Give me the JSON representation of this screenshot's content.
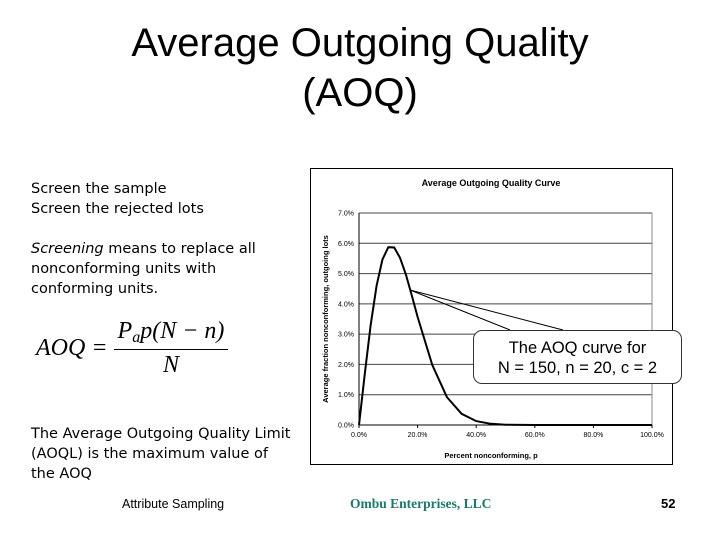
{
  "slide": {
    "title_line1": "Average Outgoing Quality",
    "title_line2": "(AOQ)",
    "bullets": [
      "Screen the sample",
      "Screen the rejected lots"
    ],
    "screening_term": "Screening",
    "screening_rest": " means to replace all nonconforming units with conforming units.",
    "formula": {
      "lhs": "AOQ =",
      "num_P": "P",
      "num_sub": "a",
      "num_rest": "p(N − n)",
      "den": "N"
    },
    "aoql_text": "The Average Outgoing Quality Limit (AOQL) is the maximum value of the AOQ",
    "callout_line1": "The AOQ curve for",
    "callout_line2": "N = 150, n = 20, c = 2",
    "footer": {
      "left": "Attribute Sampling",
      "center": "Ombu Enterprises, LLC",
      "page": "52",
      "center_color": "#1a7a6a"
    }
  },
  "chart_data": {
    "type": "line",
    "title": "Average Outgoing Quality Curve",
    "xlabel": "Percent nonconforming, p",
    "ylabel": "Average fraction nonconforming, outgoing lots",
    "xlim": [
      0,
      1.0
    ],
    "ylim": [
      0,
      0.07
    ],
    "xticks": [
      "0.0%",
      "20.0%",
      "40.0%",
      "60.0%",
      "80.0%",
      "100.0%"
    ],
    "yticks": [
      "0.0%",
      "1.0%",
      "2.0%",
      "3.0%",
      "4.0%",
      "5.0%",
      "6.0%",
      "7.0%"
    ],
    "grid": "horizontal",
    "legend": "none",
    "series": [
      {
        "x": [
          0,
          0.02,
          0.04,
          0.06,
          0.08,
          0.1,
          0.12,
          0.14,
          0.16,
          0.18,
          0.2,
          0.25,
          0.3,
          0.35,
          0.4,
          0.45,
          0.5,
          0.6,
          0.7,
          0.8,
          0.9,
          1.0
        ],
        "y": [
          0,
          0.0172,
          0.0331,
          0.046,
          0.0546,
          0.0587,
          0.0586,
          0.0552,
          0.0497,
          0.0429,
          0.0357,
          0.0198,
          0.0092,
          0.0037,
          0.0013,
          0.0004,
          0.0001,
          0,
          0,
          0,
          0,
          0
        ],
        "color": "#000000"
      }
    ]
  }
}
